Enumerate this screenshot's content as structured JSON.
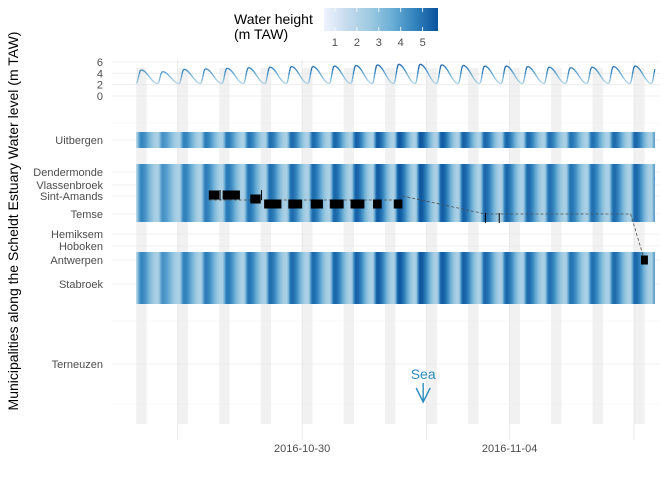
{
  "chart_data": {
    "type": "heatmap",
    "ylabel": "Municipalities along the Scheldt Estuary Water level (m TAW)",
    "x_axis": {
      "type": "date",
      "ticks": [
        "2016-10-30",
        "2016-11-04"
      ],
      "range": [
        "2016-10-25T10:00",
        "2016-11-07T15:00"
      ]
    },
    "legend": {
      "title": "Water height\n(m TAW)",
      "title_lines": [
        "Water height",
        "(m TAW)"
      ],
      "ticks": [
        "1",
        "2",
        "3",
        "4",
        "5"
      ],
      "range": [
        0.5,
        5.7
      ],
      "colors": [
        "#eff3ff",
        "#c6dbef",
        "#9ecae1",
        "#6baed6",
        "#3182bd",
        "#08519c"
      ],
      "placement": "top"
    },
    "tide_panel": {
      "y_ticks": [
        "6",
        "4",
        "2",
        "0"
      ],
      "y_range": [
        0,
        6.5
      ],
      "start": "2016-10-26T00:00",
      "period_hours": 12.42,
      "low": 2.2,
      "high_values": [
        4.6,
        4.3,
        4.7,
        4.8,
        4.9,
        5.0,
        5.1,
        5.2,
        5.2,
        5.3,
        5.4,
        5.5,
        5.6,
        5.6,
        5.5,
        5.4,
        5.3,
        5.3,
        5.2,
        5.1,
        5.0,
        5.1,
        5.2,
        5.3,
        5.4,
        4.9
      ]
    },
    "municipalities": [
      "Uitbergen",
      "Dendermonde",
      "Vlassenbroek",
      "Sint-Amands",
      "Temse",
      "Hemiksem",
      "Hoboken",
      "Antwerpen",
      "Stabroek",
      "Terneuzen"
    ],
    "nights": {
      "first_start": "2016-10-26T00:00",
      "first_end": "2016-10-26T06:00",
      "count": 13
    },
    "bands": [
      {
        "from": "Uitbergen",
        "to": "Uitbergen"
      },
      {
        "from": "Dendermonde",
        "to": "Dendermonde"
      },
      {
        "from": "Vlassenbroek",
        "to": "Temse"
      },
      {
        "from": "Antwerpen",
        "to": "Stabroek"
      }
    ],
    "track": [
      {
        "start": "2016-10-27T18:00",
        "end": "2016-10-28T00:00",
        "location": "Sint-Amands"
      },
      {
        "start": "2016-10-28T02:00",
        "end": "2016-10-28T12:00",
        "location": "Sint-Amands"
      },
      {
        "start": "2016-10-28T18:00",
        "end": "2016-10-29T00:00",
        "location": "Sint-Amands"
      },
      {
        "start": "2016-10-29T02:00",
        "end": "2016-10-29T12:00",
        "location": "Sint-Amands"
      },
      {
        "start": "2016-10-29T16:00",
        "end": "2016-10-30T00:00",
        "location": "Sint-Amands"
      },
      {
        "start": "2016-10-30T05:00",
        "end": "2016-10-30T12:00",
        "location": "Sint-Amands"
      },
      {
        "start": "2016-10-30T16:00",
        "end": "2016-10-31T00:00",
        "location": "Sint-Amands"
      },
      {
        "start": "2016-10-31T04:00",
        "end": "2016-10-31T12:00",
        "location": "Sint-Amands"
      },
      {
        "start": "2016-10-31T17:00",
        "end": "2016-10-31T22:00",
        "location": "Sint-Amands"
      },
      {
        "start": "2016-11-01T05:00",
        "end": "2016-11-01T10:00",
        "location": "Sint-Amands"
      },
      {
        "start": "2016-11-07T04:00",
        "end": "2016-11-07T08:00",
        "location": "Antwerpen"
      }
    ],
    "track_path": [
      {
        "date": "2016-11-01T10:00",
        "location": "Sint-Amands"
      },
      {
        "date": "2016-11-03T10:00",
        "location": "Temse"
      },
      {
        "date": "2016-11-06T22:00",
        "location": "Temse"
      },
      {
        "date": "2016-11-07T06:00",
        "location": "Antwerpen"
      }
    ],
    "detections": [
      {
        "date": "2016-10-28T00:30",
        "location": "Sint-Amands"
      },
      {
        "date": "2016-10-29T00:30",
        "location": "Sint-Amands"
      },
      {
        "date": "2016-11-03T10:00",
        "location": "Temse"
      },
      {
        "date": "2016-11-03T18:00",
        "location": "Temse"
      }
    ],
    "annotation": {
      "text": "Sea",
      "location": "Terneuzen",
      "date": "2016-11-01T22:00"
    }
  }
}
